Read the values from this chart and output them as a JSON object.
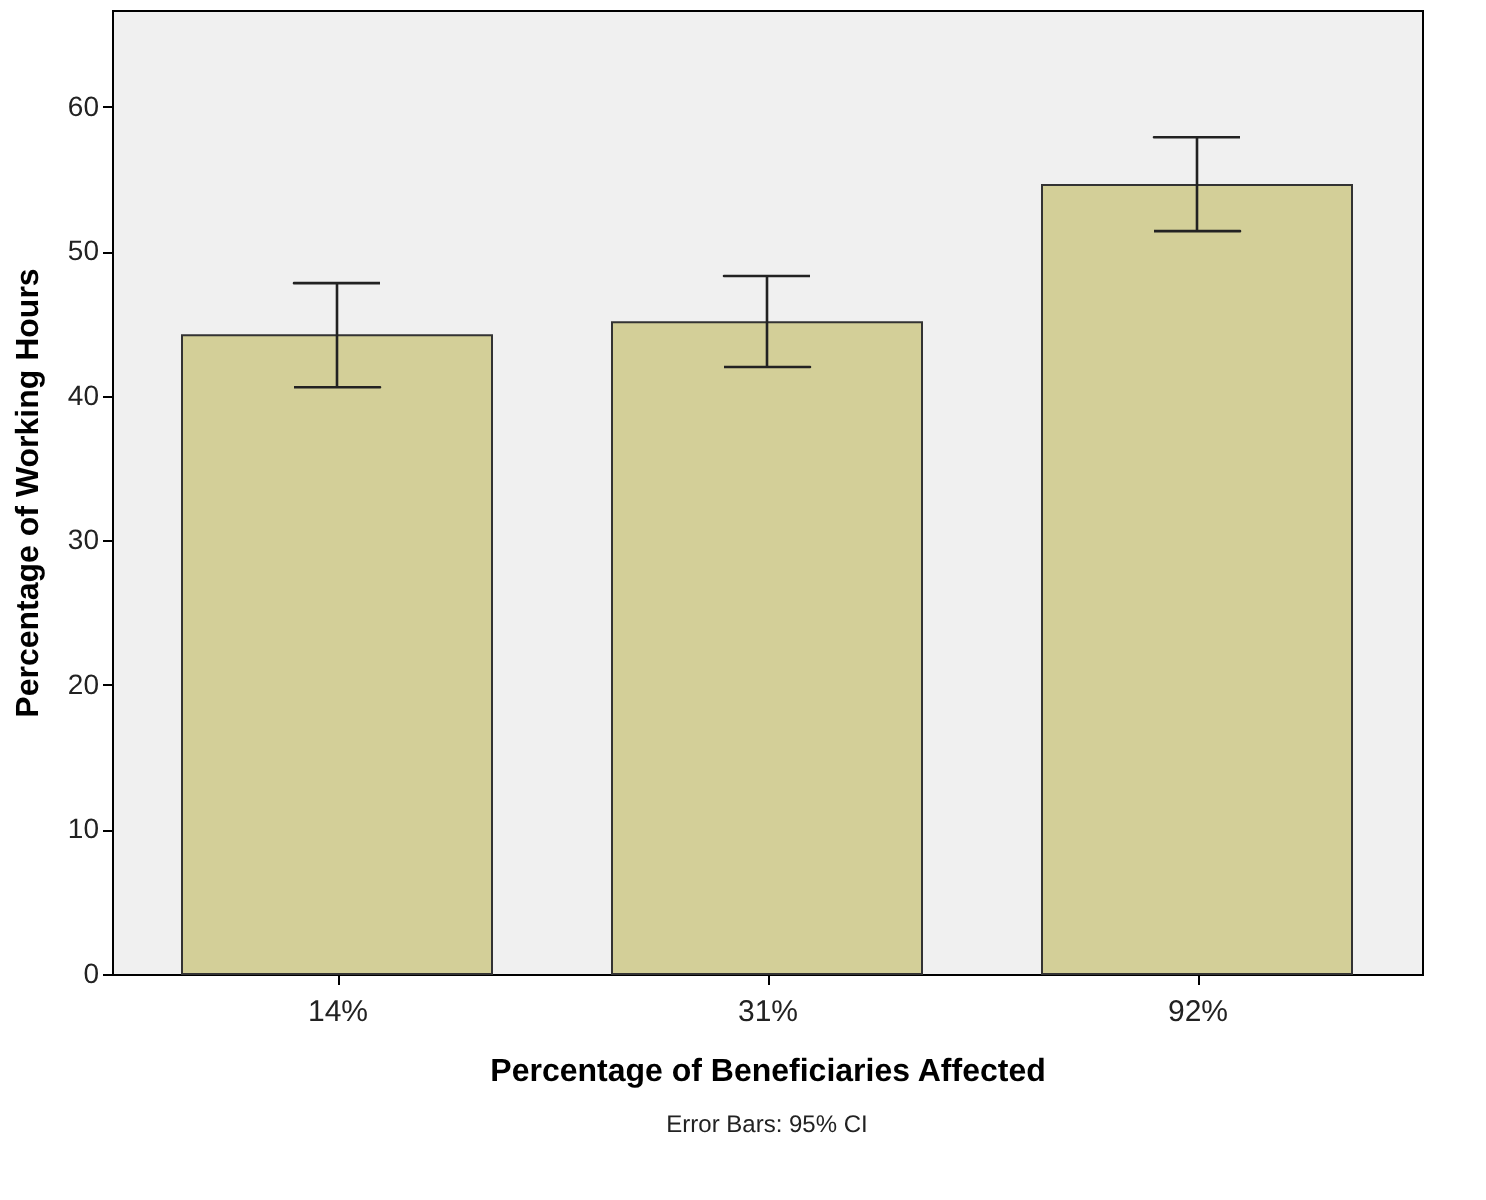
{
  "chart_data": {
    "type": "bar",
    "xlabel": "Percentage of Beneficiaries Affected",
    "ylabel": "Percentage of Working Hours",
    "categories": [
      "14%",
      "31%",
      "92%"
    ],
    "values": [
      44.2,
      45.1,
      54.6
    ],
    "errors": [
      [
        40.6,
        47.8
      ],
      [
        42.0,
        48.3
      ],
      [
        51.4,
        57.9
      ]
    ],
    "color": "#d3cf98",
    "ylim": [
      0,
      66.7
    ],
    "yticks": [
      0,
      10,
      20,
      30,
      40,
      50,
      60
    ],
    "grid": false,
    "annotations": [
      "Error Bars: 95% CI"
    ]
  }
}
